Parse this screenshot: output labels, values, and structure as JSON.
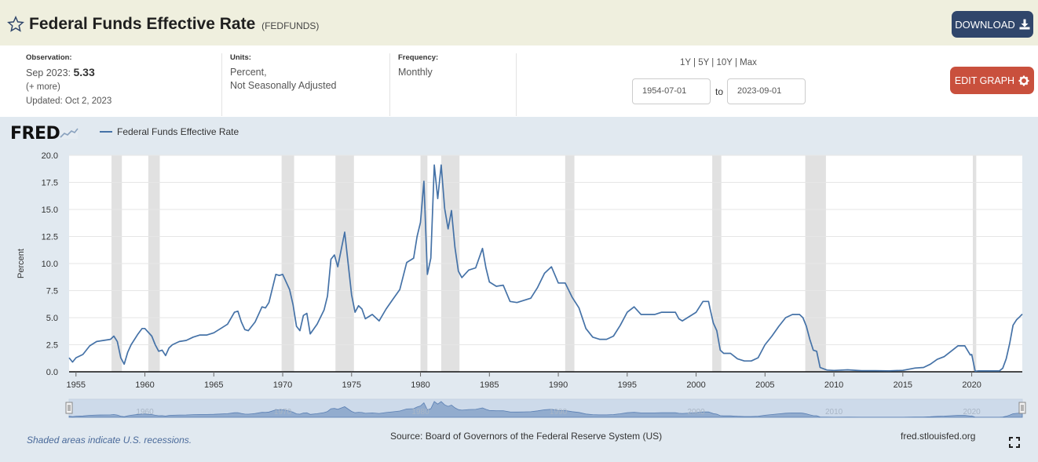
{
  "header": {
    "title": "Federal Funds Effective Rate",
    "series_id": "(FEDFUNDS)",
    "download_label": "DOWNLOAD"
  },
  "info": {
    "observation_label": "Observation:",
    "observation_date": "Sep 2023:",
    "observation_value": "5.33",
    "more": "(+ more)",
    "updated": "Updated: Oct 2, 2023",
    "units_label": "Units:",
    "units_line1": "Percent,",
    "units_line2": "Not Seasonally Adjusted",
    "frequency_label": "Frequency:",
    "frequency_value": "Monthly"
  },
  "range": {
    "options": [
      "1Y",
      "5Y",
      "10Y",
      "Max"
    ],
    "start": "1954-07-01",
    "to_label": "to",
    "end": "2023-09-01"
  },
  "edit_label": "EDIT GRAPH",
  "footer": {
    "recession_note": "Shaded areas indicate U.S. recessions.",
    "source": "Source: Board of Governors of the Federal Reserve System (US)",
    "site": "fred.stlouisfed.org"
  },
  "colors": {
    "line": "#4572a7",
    "recession": "#e1e1e1",
    "panel": "#e1e9f0",
    "download": "#30466b",
    "edit": "#c9503d"
  },
  "chart_data": {
    "type": "line",
    "title": "Federal Funds Effective Rate",
    "logo": "FRED",
    "legend": [
      "Federal Funds Effective Rate"
    ],
    "ylabel": "Percent",
    "xlabel": "",
    "xlim": [
      1954.5,
      2023.67
    ],
    "ylim": [
      0,
      20
    ],
    "yticks": [
      0,
      2.5,
      5,
      7.5,
      10,
      12.5,
      15,
      17.5,
      20
    ],
    "ytick_labels": [
      "0.0",
      "2.5",
      "5.0",
      "7.5",
      "10.0",
      "12.5",
      "15.0",
      "17.5",
      "20.0"
    ],
    "xticks": [
      1955,
      1960,
      1965,
      1970,
      1975,
      1980,
      1985,
      1990,
      1995,
      2000,
      2005,
      2010,
      2015,
      2020
    ],
    "navigator_labels": [
      "1960",
      "1970",
      "1980",
      "1990",
      "2000",
      "2010",
      "2020"
    ],
    "recessions": [
      [
        1957.58,
        1958.33
      ],
      [
        1960.25,
        1961.08
      ],
      [
        1969.92,
        1970.83
      ],
      [
        1973.83,
        1975.17
      ],
      [
        1980.0,
        1980.5
      ],
      [
        1981.5,
        1982.83
      ],
      [
        1990.5,
        1991.17
      ],
      [
        2001.17,
        2001.83
      ],
      [
        2007.92,
        2009.42
      ],
      [
        2020.08,
        2020.33
      ]
    ],
    "series": [
      {
        "name": "Federal Funds Effective Rate",
        "x": [
          1954.5,
          1954.75,
          1955.0,
          1955.5,
          1956.0,
          1956.5,
          1957.0,
          1957.5,
          1957.75,
          1958.0,
          1958.25,
          1958.5,
          1958.75,
          1959.0,
          1959.5,
          1959.8,
          1960.0,
          1960.5,
          1960.75,
          1961.0,
          1961.25,
          1961.5,
          1961.75,
          1962.0,
          1962.5,
          1963.0,
          1963.5,
          1964.0,
          1964.5,
          1965.0,
          1965.5,
          1966.0,
          1966.5,
          1966.75,
          1967.0,
          1967.25,
          1967.5,
          1967.75,
          1968.0,
          1968.5,
          1968.75,
          1969.0,
          1969.5,
          1969.75,
          1970.0,
          1970.5,
          1970.75,
          1971.0,
          1971.25,
          1971.5,
          1971.75,
          1972.0,
          1972.5,
          1973.0,
          1973.25,
          1973.5,
          1973.75,
          1974.0,
          1974.25,
          1974.5,
          1974.75,
          1975.0,
          1975.25,
          1975.5,
          1975.75,
          1976.0,
          1976.5,
          1977.0,
          1977.5,
          1978.0,
          1978.5,
          1979.0,
          1979.5,
          1979.75,
          1980.0,
          1980.25,
          1980.5,
          1980.75,
          1981.0,
          1981.25,
          1981.5,
          1981.75,
          1982.0,
          1982.25,
          1982.5,
          1982.75,
          1983.0,
          1983.5,
          1984.0,
          1984.5,
          1984.75,
          1985.0,
          1985.5,
          1986.0,
          1986.5,
          1987.0,
          1987.5,
          1988.0,
          1988.5,
          1989.0,
          1989.5,
          1990.0,
          1990.5,
          1991.0,
          1991.5,
          1992.0,
          1992.5,
          1993.0,
          1993.5,
          1994.0,
          1994.5,
          1995.0,
          1995.5,
          1996.0,
          1996.5,
          1997.0,
          1997.5,
          1998.0,
          1998.5,
          1998.75,
          1999.0,
          1999.5,
          2000.0,
          2000.5,
          2000.9,
          2001.0,
          2001.25,
          2001.5,
          2001.75,
          2002.0,
          2002.5,
          2002.9,
          2003.0,
          2003.5,
          2004.0,
          2004.5,
          2005.0,
          2005.5,
          2006.0,
          2006.5,
          2007.0,
          2007.5,
          2007.75,
          2008.0,
          2008.25,
          2008.5,
          2008.75,
          2009.0,
          2009.5,
          2010.0,
          2011.0,
          2012.0,
          2013.0,
          2014.0,
          2015.0,
          2015.9,
          2016.5,
          2017.0,
          2017.5,
          2018.0,
          2018.5,
          2019.0,
          2019.5,
          2019.9,
          2020.0,
          2020.25,
          2020.5,
          2021.0,
          2021.5,
          2022.0,
          2022.25,
          2022.5,
          2022.75,
          2023.0,
          2023.25,
          2023.5,
          2023.67
        ],
        "values": [
          1.3,
          0.9,
          1.3,
          1.6,
          2.4,
          2.8,
          2.9,
          3.0,
          3.3,
          2.8,
          1.3,
          0.7,
          1.8,
          2.5,
          3.5,
          4.0,
          4.0,
          3.3,
          2.5,
          1.9,
          2.0,
          1.5,
          2.2,
          2.5,
          2.8,
          2.9,
          3.2,
          3.4,
          3.4,
          3.6,
          4.0,
          4.4,
          5.5,
          5.6,
          4.6,
          3.9,
          3.8,
          4.2,
          4.6,
          6.0,
          5.9,
          6.4,
          9.0,
          8.9,
          9.0,
          7.6,
          6.2,
          4.2,
          3.8,
          5.2,
          5.4,
          3.5,
          4.4,
          5.7,
          7.0,
          10.4,
          10.8,
          9.7,
          11.3,
          12.9,
          10.0,
          7.1,
          5.5,
          6.1,
          5.8,
          4.9,
          5.3,
          4.7,
          5.8,
          6.7,
          7.6,
          10.1,
          10.5,
          12.5,
          13.8,
          17.6,
          9.0,
          10.5,
          19.1,
          16.0,
          19.1,
          15.1,
          13.2,
          14.9,
          11.5,
          9.3,
          8.7,
          9.4,
          9.6,
          11.4,
          9.6,
          8.3,
          7.9,
          8.0,
          6.5,
          6.4,
          6.6,
          6.8,
          7.8,
          9.1,
          9.7,
          8.2,
          8.2,
          6.9,
          5.9,
          4.0,
          3.2,
          3.0,
          3.0,
          3.3,
          4.3,
          5.5,
          6.0,
          5.3,
          5.3,
          5.3,
          5.5,
          5.5,
          5.5,
          4.9,
          4.7,
          5.1,
          5.5,
          6.5,
          6.5,
          5.9,
          4.5,
          3.8,
          2.0,
          1.7,
          1.7,
          1.3,
          1.2,
          1.0,
          1.0,
          1.3,
          2.5,
          3.3,
          4.2,
          5.0,
          5.3,
          5.3,
          5.0,
          4.2,
          3.0,
          2.0,
          1.9,
          0.4,
          0.16,
          0.12,
          0.18,
          0.1,
          0.1,
          0.09,
          0.13,
          0.35,
          0.4,
          0.7,
          1.15,
          1.4,
          1.9,
          2.4,
          2.4,
          1.55,
          1.6,
          0.05,
          0.09,
          0.08,
          0.08,
          0.08,
          0.33,
          1.2,
          2.6,
          4.3,
          4.8,
          5.1,
          5.33
        ]
      }
    ]
  }
}
